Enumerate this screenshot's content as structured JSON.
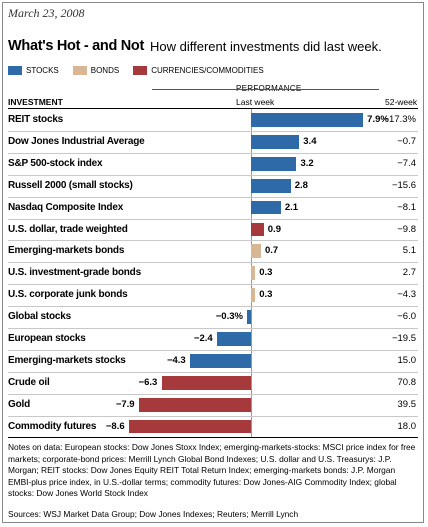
{
  "date": "March 23, 2008",
  "title": "What's Hot - and Not",
  "subtitle": "How different investments did last week.",
  "legend": [
    {
      "label": "STOCKS",
      "color": "#2f6aa8"
    },
    {
      "label": "BONDS",
      "color": "#d8b894"
    },
    {
      "label": "CURRENCIES/COMMODITIES",
      "color": "#a5393c"
    }
  ],
  "header": {
    "performance": "PERFORMANCE",
    "investment": "INVESTMENT",
    "last_week": "Last week",
    "week52": "52-week"
  },
  "chart_data": {
    "type": "bar",
    "title": "What's Hot - and Not",
    "subtitle": "How different investments did last week.",
    "categories": [
      "REIT stocks",
      "Dow Jones Industrial Average",
      "S&P 500-stock index",
      "Russell 2000 (small stocks)",
      "Nasdaq Composite Index",
      "U.S. dollar, trade weighted",
      "Emerging-markets bonds",
      "U.S. investment-grade bonds",
      "U.S. corporate junk bonds",
      "Global stocks",
      "European stocks",
      "Emerging-markets stocks",
      "Crude oil",
      "Gold",
      "Commodity futures"
    ],
    "series": [
      {
        "name": "Last week",
        "values": [
          7.9,
          3.4,
          3.2,
          2.8,
          2.1,
          0.9,
          0.7,
          0.3,
          0.3,
          -0.3,
          -2.4,
          -4.3,
          -6.3,
          -7.9,
          -8.6
        ]
      }
    ],
    "labels": [
      "7.9%",
      "3.4",
      "3.2",
      "2.8",
      "2.1",
      "0.9",
      "0.7",
      "0.3",
      "0.3",
      "−0.3%",
      "−2.4",
      "−4.3",
      "−6.3",
      "−7.9",
      "−8.6"
    ],
    "asset_class": [
      "stocks",
      "stocks",
      "stocks",
      "stocks",
      "stocks",
      "currency",
      "bonds",
      "bonds",
      "bonds",
      "stocks",
      "stocks",
      "stocks",
      "currency",
      "currency",
      "currency"
    ],
    "week52": [
      "−17.3%",
      "−0.7",
      "−7.4",
      "−15.6",
      "−8.1",
      "−9.8",
      "5.1",
      "2.7",
      "−4.3",
      "−6.0",
      "−19.5",
      "15.0",
      "70.8",
      "39.5",
      "18.0"
    ],
    "colors": {
      "stocks": "#2f6aa8",
      "bonds": "#d8b894",
      "currency": "#a5393c"
    },
    "xlim": [
      -8.6,
      7.9
    ]
  },
  "notes": "Notes on data: European stocks: Dow Jones Stoxx Index; emerging-markets-stocks: MSCI price index for free markets; corporate-bond prices: Merrill Lynch Global Bond Indexes; U.S. dollar and U.S. Treasurys: J.P. Morgan; REIT stocks: Dow Jones Equity REIT Total Return Index; emerging-markets bonds: J.P. Morgan EMBI-plus price index, in U.S.-dollar terms; commodity futures: Dow Jones-AIG Commodity Index; global stocks: Dow Jones World Stock Index",
  "sources": "Sources: WSJ Market Data Group; Dow Jones Indexes; Reuters; Merrill Lynch"
}
